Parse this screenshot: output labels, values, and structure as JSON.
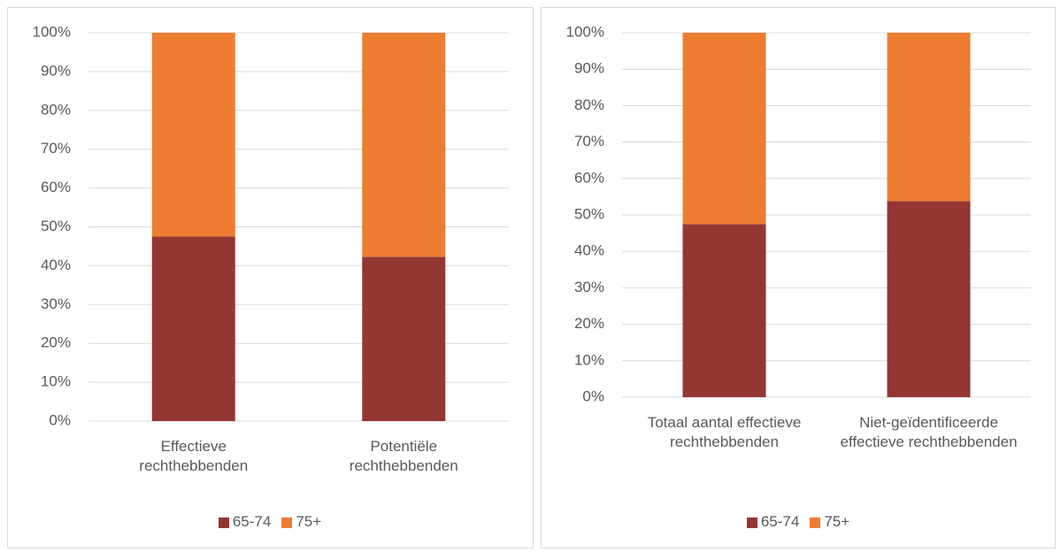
{
  "chart_data": [
    {
      "type": "stacked_bar",
      "categories": [
        "Effectieve rechthebbenden",
        "Potentiële rechthebbenden"
      ],
      "series": [
        {
          "name": "65-74",
          "color": "#943634",
          "values": [
            47.5,
            42.3
          ]
        },
        {
          "name": "75+",
          "color": "#ed7d31",
          "values": [
            52.5,
            57.7
          ]
        }
      ],
      "ylim": [
        0,
        100
      ],
      "yticks": [
        {
          "value": 0,
          "label": "0%"
        },
        {
          "value": 10,
          "label": "10%"
        },
        {
          "value": 20,
          "label": "20%"
        },
        {
          "value": 30,
          "label": "30%"
        },
        {
          "value": 40,
          "label": "40%"
        },
        {
          "value": 50,
          "label": "50%"
        },
        {
          "value": 60,
          "label": "60%"
        },
        {
          "value": 70,
          "label": "70%"
        },
        {
          "value": 80,
          "label": "80%"
        },
        {
          "value": 90,
          "label": "90%"
        },
        {
          "value": 100,
          "label": "100%"
        }
      ],
      "grid": true,
      "legend": "bottom"
    },
    {
      "type": "stacked_bar",
      "categories": [
        "Totaal aantal effectieve rechthebbenden",
        "Niet-geïdentificeerde effectieve rechthebbenden"
      ],
      "series": [
        {
          "name": "65-74",
          "color": "#943634",
          "values": [
            47.5,
            53.8
          ]
        },
        {
          "name": "75+",
          "color": "#ed7d31",
          "values": [
            52.5,
            46.2
          ]
        }
      ],
      "ylim": [
        0,
        100
      ],
      "yticks": [
        {
          "value": 0,
          "label": "0%"
        },
        {
          "value": 10,
          "label": "10%"
        },
        {
          "value": 20,
          "label": "20%"
        },
        {
          "value": 30,
          "label": "30%"
        },
        {
          "value": 40,
          "label": "40%"
        },
        {
          "value": 50,
          "label": "50%"
        },
        {
          "value": 60,
          "label": "60%"
        },
        {
          "value": 70,
          "label": "70%"
        },
        {
          "value": 80,
          "label": "80%"
        },
        {
          "value": 90,
          "label": "90%"
        },
        {
          "value": 100,
          "label": "100%"
        }
      ],
      "grid": true,
      "legend": "bottom"
    }
  ]
}
